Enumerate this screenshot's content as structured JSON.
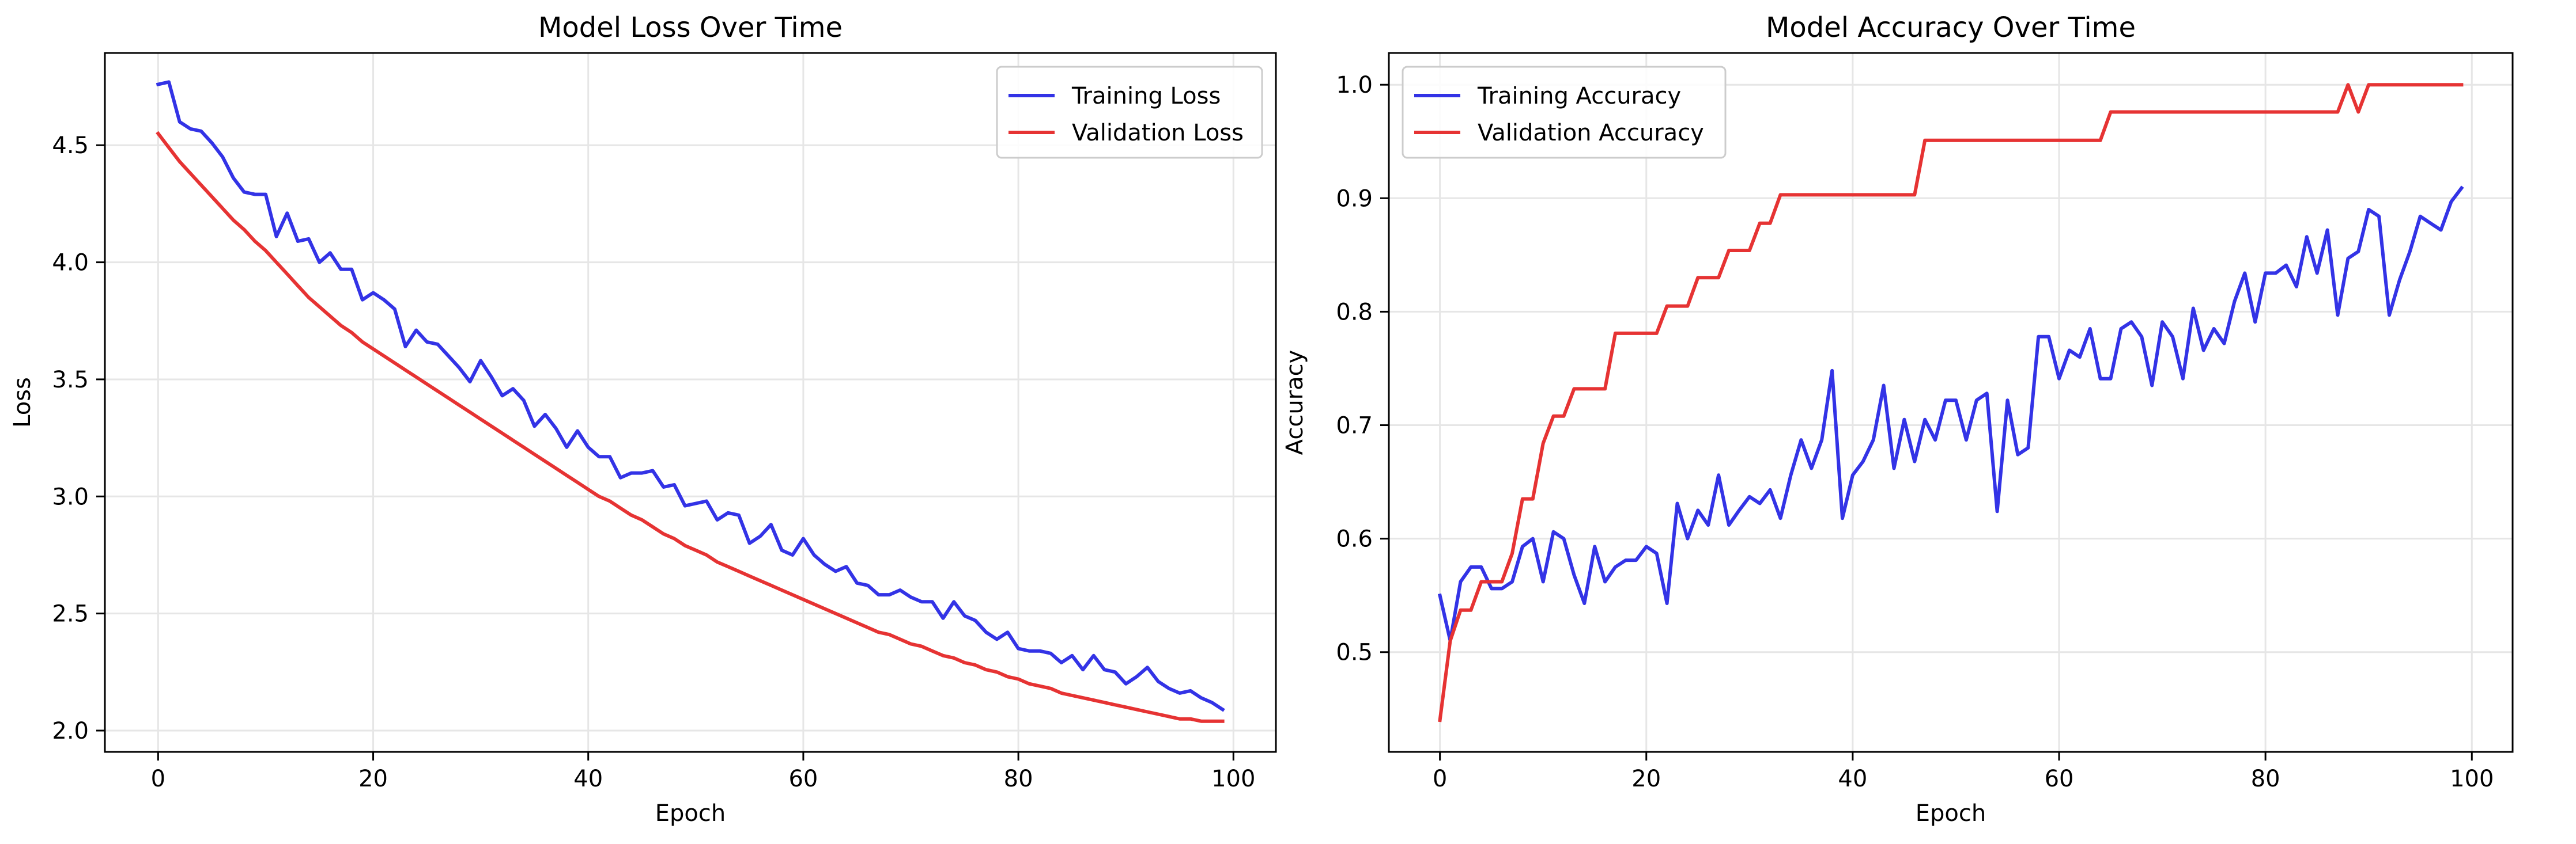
{
  "chart_data": [
    {
      "type": "line",
      "title": "Model Loss Over Time",
      "xlabel": "Epoch",
      "ylabel": "Loss",
      "xlim": [
        -4.95,
        103.95
      ],
      "ylim": [
        1.909,
        4.894
      ],
      "xticks": [
        0,
        20,
        40,
        60,
        80,
        100
      ],
      "xtick_labels": [
        "0",
        "20",
        "40",
        "60",
        "80",
        "100"
      ],
      "yticks": [
        2.0,
        2.5,
        3.0,
        3.5,
        4.0,
        4.5
      ],
      "ytick_labels": [
        "2.0",
        "2.5",
        "3.0",
        "3.5",
        "4.0",
        "4.5"
      ],
      "grid": true,
      "legend_position": "upper right",
      "series": [
        {
          "name": "Training Loss",
          "color": "#3333e6",
          "y": [
            4.76,
            4.77,
            4.6,
            4.57,
            4.56,
            4.51,
            4.45,
            4.36,
            4.3,
            4.29,
            4.29,
            4.11,
            4.21,
            4.09,
            4.1,
            4.0,
            4.04,
            3.97,
            3.97,
            3.84,
            3.87,
            3.84,
            3.8,
            3.64,
            3.71,
            3.66,
            3.65,
            3.6,
            3.55,
            3.49,
            3.58,
            3.51,
            3.43,
            3.46,
            3.41,
            3.3,
            3.35,
            3.29,
            3.21,
            3.28,
            3.21,
            3.17,
            3.17,
            3.08,
            3.1,
            3.1,
            3.11,
            3.04,
            3.05,
            2.96,
            2.97,
            2.98,
            2.9,
            2.93,
            2.92,
            2.8,
            2.83,
            2.88,
            2.77,
            2.75,
            2.82,
            2.75,
            2.71,
            2.68,
            2.7,
            2.63,
            2.62,
            2.58,
            2.58,
            2.6,
            2.57,
            2.55,
            2.55,
            2.48,
            2.55,
            2.49,
            2.47,
            2.42,
            2.39,
            2.42,
            2.35,
            2.34,
            2.34,
            2.33,
            2.29,
            2.32,
            2.26,
            2.32,
            2.26,
            2.25,
            2.2,
            2.23,
            2.27,
            2.21,
            2.18,
            2.16,
            2.17,
            2.14,
            2.12,
            2.09
          ]
        },
        {
          "name": "Validation Loss",
          "color": "#e63333",
          "y": [
            4.55,
            4.49,
            4.43,
            4.38,
            4.33,
            4.28,
            4.23,
            4.18,
            4.14,
            4.09,
            4.05,
            4.0,
            3.95,
            3.9,
            3.85,
            3.81,
            3.77,
            3.73,
            3.7,
            3.66,
            3.63,
            3.6,
            3.57,
            3.54,
            3.51,
            3.48,
            3.45,
            3.42,
            3.39,
            3.36,
            3.33,
            3.3,
            3.27,
            3.24,
            3.21,
            3.18,
            3.15,
            3.12,
            3.09,
            3.06,
            3.03,
            3.0,
            2.98,
            2.95,
            2.92,
            2.9,
            2.87,
            2.84,
            2.82,
            2.79,
            2.77,
            2.75,
            2.72,
            2.7,
            2.68,
            2.66,
            2.64,
            2.62,
            2.6,
            2.58,
            2.56,
            2.54,
            2.52,
            2.5,
            2.48,
            2.46,
            2.44,
            2.42,
            2.41,
            2.39,
            2.37,
            2.36,
            2.34,
            2.32,
            2.31,
            2.29,
            2.28,
            2.26,
            2.25,
            2.23,
            2.22,
            2.2,
            2.19,
            2.18,
            2.16,
            2.15,
            2.14,
            2.13,
            2.12,
            2.11,
            2.1,
            2.09,
            2.08,
            2.07,
            2.06,
            2.05,
            2.05,
            2.04,
            2.04,
            2.04
          ]
        }
      ]
    },
    {
      "type": "line",
      "title": "Model Accuracy Over Time",
      "xlabel": "Epoch",
      "ylabel": "Accuracy",
      "xlim": [
        -4.95,
        103.95
      ],
      "ylim": [
        0.4121,
        1.028
      ],
      "xticks": [
        0,
        20,
        40,
        60,
        80,
        100
      ],
      "xtick_labels": [
        "0",
        "20",
        "40",
        "60",
        "80",
        "100"
      ],
      "yticks": [
        0.5,
        0.6,
        0.7,
        0.8,
        0.9,
        1.0
      ],
      "ytick_labels": [
        "0.5",
        "0.6",
        "0.7",
        "0.8",
        "0.9",
        "1.0"
      ],
      "grid": true,
      "legend_position": "upper left",
      "series": [
        {
          "name": "Training Accuracy",
          "color": "#3333e6",
          "y": [
            0.55,
            0.51,
            0.562,
            0.575,
            0.575,
            0.556,
            0.556,
            0.562,
            0.593,
            0.6,
            0.562,
            0.606,
            0.6,
            0.568,
            0.543,
            0.593,
            0.562,
            0.575,
            0.581,
            0.581,
            0.593,
            0.587,
            0.543,
            0.631,
            0.6,
            0.625,
            0.612,
            0.656,
            0.612,
            0.625,
            0.637,
            0.631,
            0.643,
            0.618,
            0.656,
            0.687,
            0.662,
            0.687,
            0.748,
            0.618,
            0.656,
            0.668,
            0.687,
            0.735,
            0.662,
            0.705,
            0.668,
            0.705,
            0.687,
            0.722,
            0.722,
            0.687,
            0.722,
            0.728,
            0.624,
            0.722,
            0.674,
            0.68,
            0.778,
            0.778,
            0.741,
            0.766,
            0.76,
            0.785,
            0.741,
            0.741,
            0.785,
            0.791,
            0.778,
            0.735,
            0.791,
            0.778,
            0.741,
            0.803,
            0.766,
            0.785,
            0.772,
            0.809,
            0.834,
            0.791,
            0.834,
            0.834,
            0.841,
            0.822,
            0.866,
            0.834,
            0.872,
            0.797,
            0.847,
            0.853,
            0.89,
            0.884,
            0.797,
            0.828,
            0.853,
            0.884,
            0.878,
            0.872,
            0.897,
            0.909
          ]
        },
        {
          "name": "Validation Accuracy",
          "color": "#e63333",
          "y": [
            0.44,
            0.51,
            0.537,
            0.537,
            0.562,
            0.562,
            0.562,
            0.587,
            0.635,
            0.635,
            0.684,
            0.708,
            0.708,
            0.732,
            0.732,
            0.732,
            0.732,
            0.781,
            0.781,
            0.781,
            0.781,
            0.781,
            0.805,
            0.805,
            0.805,
            0.83,
            0.83,
            0.83,
            0.854,
            0.854,
            0.854,
            0.878,
            0.878,
            0.903,
            0.903,
            0.903,
            0.903,
            0.903,
            0.903,
            0.903,
            0.903,
            0.903,
            0.903,
            0.903,
            0.903,
            0.903,
            0.903,
            0.951,
            0.951,
            0.951,
            0.951,
            0.951,
            0.951,
            0.951,
            0.951,
            0.951,
            0.951,
            0.951,
            0.951,
            0.951,
            0.951,
            0.951,
            0.951,
            0.951,
            0.951,
            0.976,
            0.976,
            0.976,
            0.976,
            0.976,
            0.976,
            0.976,
            0.976,
            0.976,
            0.976,
            0.976,
            0.976,
            0.976,
            0.976,
            0.976,
            0.976,
            0.976,
            0.976,
            0.976,
            0.976,
            0.976,
            0.976,
            0.976,
            1.0,
            0.976,
            1.0,
            1.0,
            1.0,
            1.0,
            1.0,
            1.0,
            1.0,
            1.0,
            1.0,
            1.0
          ]
        }
      ]
    }
  ]
}
